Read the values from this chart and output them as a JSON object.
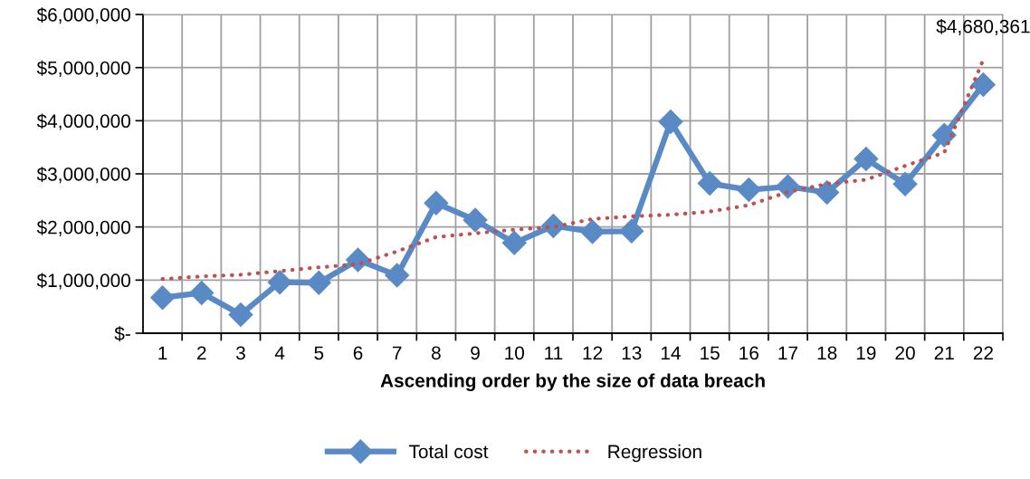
{
  "chart_data": {
    "type": "line",
    "xlabel": "Ascending order by the size of data breach",
    "categories": [
      "1",
      "2",
      "3",
      "4",
      "5",
      "6",
      "7",
      "8",
      "9",
      "10",
      "11",
      "12",
      "13",
      "14",
      "15",
      "16",
      "17",
      "18",
      "19",
      "20",
      "21",
      "22"
    ],
    "series": [
      {
        "name": "Total cost",
        "color": "#5a8ac6",
        "marker": "diamond",
        "line_style": "solid",
        "values": [
          670000,
          760000,
          350000,
          960000,
          950000,
          1380000,
          1090000,
          2450000,
          2130000,
          1700000,
          2020000,
          1910000,
          1920000,
          3980000,
          2820000,
          2700000,
          2760000,
          2650000,
          3280000,
          2810000,
          3730000,
          4680361
        ]
      },
      {
        "name": "Regression",
        "color": "#c0504d",
        "marker": "none",
        "line_style": "dotted",
        "values": [
          1020000,
          1070000,
          1100000,
          1170000,
          1240000,
          1300000,
          1540000,
          1810000,
          1880000,
          1950000,
          2000000,
          2150000,
          2200000,
          2230000,
          2290000,
          2410000,
          2660000,
          2810000,
          2890000,
          3150000,
          3400000,
          5150000
        ]
      }
    ],
    "ylim": [
      0,
      6000000
    ],
    "yticks": [
      {
        "value": 0,
        "label": "$-"
      },
      {
        "value": 1000000,
        "label": "$1,000,000"
      },
      {
        "value": 2000000,
        "label": "$2,000,000"
      },
      {
        "value": 3000000,
        "label": "$3,000,000"
      },
      {
        "value": 4000000,
        "label": "$4,000,000"
      },
      {
        "value": 5000000,
        "label": "$5,000,000"
      },
      {
        "value": 6000000,
        "label": "$6,000,000"
      }
    ],
    "annotations": [
      {
        "text": "$4,680,361",
        "x": "22",
        "y": 4680361
      }
    ],
    "grid": true,
    "legend": "bottom"
  }
}
